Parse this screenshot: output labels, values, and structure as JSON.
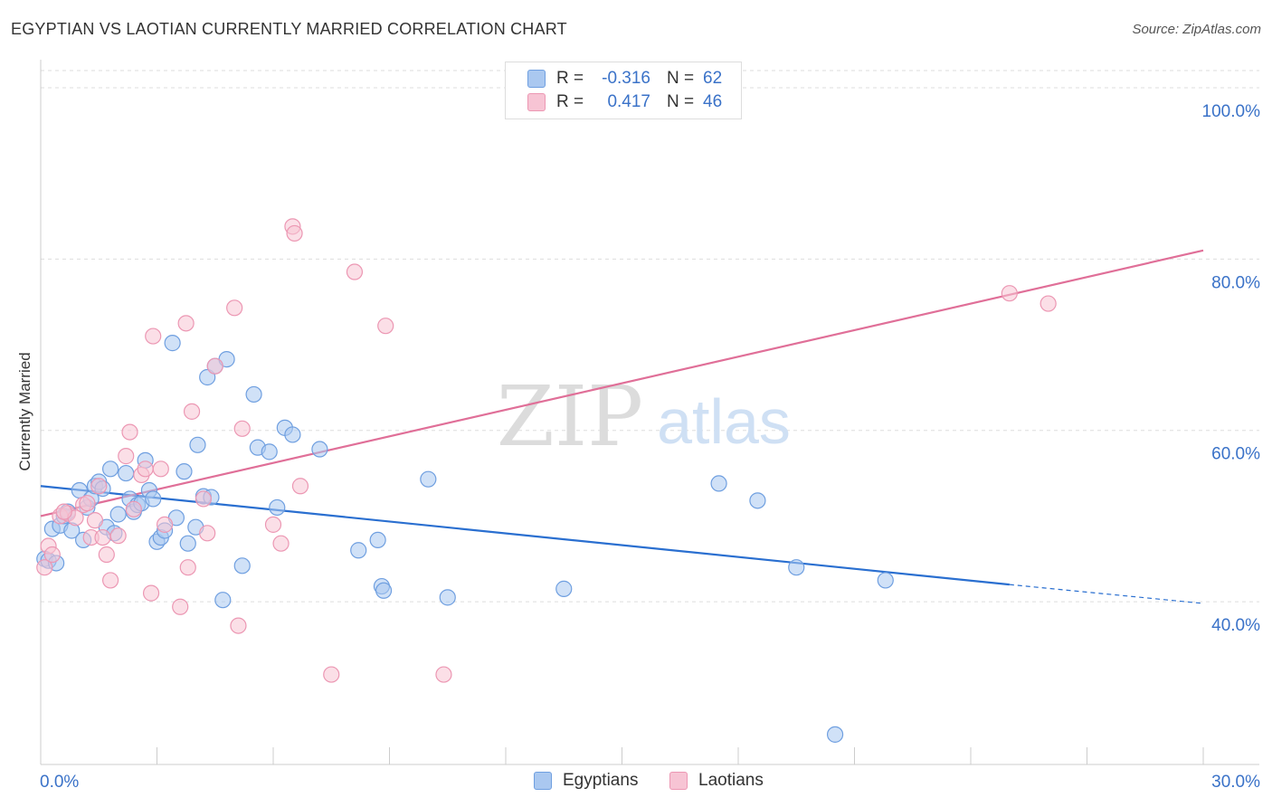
{
  "title": "EGYPTIAN VS LAOTIAN CURRENTLY MARRIED CORRELATION CHART",
  "source": "Source: ZipAtlas.com",
  "watermark": {
    "zip": "ZIP",
    "atlas": "atlas"
  },
  "colors": {
    "egyptians_fill": "#aac8f0",
    "egyptians_stroke": "#6f9fe0",
    "egyptians_line": "#2a6fd0",
    "laotians_fill": "#f7c4d4",
    "laotians_stroke": "#ec97b3",
    "laotians_line": "#e06f98",
    "axis_text": "#3a72c8",
    "grid": "#dddddd"
  },
  "legend_top": {
    "rows": [
      {
        "r_label": "R =",
        "r_value": "-0.316",
        "n_label": "N =",
        "n_value": "62"
      },
      {
        "r_label": "R =",
        "r_value": "0.417",
        "n_label": "N =",
        "n_value": "46"
      }
    ]
  },
  "legend_bottom": {
    "items": [
      "Egyptians",
      "Laotians"
    ]
  },
  "chart_data": {
    "type": "scatter",
    "title": "EGYPTIAN VS LAOTIAN CURRENTLY MARRIED CORRELATION CHART",
    "xlabel": "",
    "ylabel": "Currently Married",
    "xlim": [
      0,
      30
    ],
    "ylim": [
      21,
      102
    ],
    "x_tick_labels": [
      "0.0%",
      "30.0%"
    ],
    "y_ticks": [
      40,
      60,
      80,
      100
    ],
    "y_tick_labels": [
      "40.0%",
      "60.0%",
      "80.0%",
      "100.0%"
    ],
    "grid": true,
    "legend_position": "top-center",
    "series": [
      {
        "name": "Egyptians",
        "r": -0.316,
        "n": 62,
        "trend": {
          "x0": 0,
          "y0": 53.5,
          "x1": 25,
          "y1": 42.0,
          "dash_to": 30,
          "dash_y": 39.8
        },
        "points": [
          [
            0.1,
            45.0
          ],
          [
            0.2,
            44.8
          ],
          [
            0.3,
            48.5
          ],
          [
            0.4,
            44.5
          ],
          [
            0.5,
            48.9
          ],
          [
            0.6,
            50.0
          ],
          [
            0.7,
            50.5
          ],
          [
            0.8,
            48.3
          ],
          [
            1.0,
            53.0
          ],
          [
            1.1,
            47.2
          ],
          [
            1.2,
            51.0
          ],
          [
            1.3,
            52.0
          ],
          [
            1.4,
            53.5
          ],
          [
            1.5,
            54.0
          ],
          [
            1.6,
            53.2
          ],
          [
            1.7,
            48.7
          ],
          [
            1.8,
            55.5
          ],
          [
            1.9,
            48.0
          ],
          [
            2.0,
            50.2
          ],
          [
            2.2,
            55.0
          ],
          [
            2.3,
            52.0
          ],
          [
            2.4,
            50.5
          ],
          [
            2.5,
            51.3
          ],
          [
            2.6,
            51.5
          ],
          [
            2.7,
            56.5
          ],
          [
            2.8,
            53.0
          ],
          [
            2.9,
            52.0
          ],
          [
            3.0,
            47.0
          ],
          [
            3.1,
            47.5
          ],
          [
            3.2,
            48.3
          ],
          [
            3.4,
            70.2
          ],
          [
            3.5,
            49.8
          ],
          [
            3.7,
            55.2
          ],
          [
            3.8,
            46.8
          ],
          [
            4.0,
            48.7
          ],
          [
            4.05,
            58.3
          ],
          [
            4.2,
            52.3
          ],
          [
            4.3,
            66.2
          ],
          [
            4.4,
            52.2
          ],
          [
            4.5,
            67.5
          ],
          [
            4.7,
            40.2
          ],
          [
            4.8,
            68.3
          ],
          [
            5.2,
            44.2
          ],
          [
            5.5,
            64.2
          ],
          [
            5.6,
            58.0
          ],
          [
            5.9,
            57.5
          ],
          [
            6.1,
            51.0
          ],
          [
            6.3,
            60.3
          ],
          [
            6.5,
            59.5
          ],
          [
            7.2,
            57.8
          ],
          [
            8.2,
            46.0
          ],
          [
            8.7,
            47.2
          ],
          [
            8.8,
            41.8
          ],
          [
            8.85,
            41.3
          ],
          [
            10.0,
            54.3
          ],
          [
            10.5,
            40.5
          ],
          [
            13.5,
            41.5
          ],
          [
            17.5,
            53.8
          ],
          [
            18.5,
            51.8
          ],
          [
            19.5,
            44.0
          ],
          [
            20.5,
            24.5
          ],
          [
            21.8,
            42.5
          ]
        ]
      },
      {
        "name": "Laotians",
        "r": 0.417,
        "n": 46,
        "trend": {
          "x0": 0,
          "y0": 50.0,
          "x1": 30,
          "y1": 81.0
        },
        "points": [
          [
            0.1,
            44.0
          ],
          [
            0.2,
            46.5
          ],
          [
            0.3,
            45.5
          ],
          [
            0.5,
            50.0
          ],
          [
            0.7,
            50.3
          ],
          [
            0.9,
            49.8
          ],
          [
            1.1,
            51.3
          ],
          [
            1.2,
            51.5
          ],
          [
            1.3,
            47.5
          ],
          [
            1.4,
            49.5
          ],
          [
            1.5,
            53.5
          ],
          [
            1.6,
            47.5
          ],
          [
            1.7,
            45.5
          ],
          [
            1.8,
            42.5
          ],
          [
            2.0,
            47.7
          ],
          [
            2.3,
            59.8
          ],
          [
            2.4,
            50.8
          ],
          [
            2.6,
            54.8
          ],
          [
            2.7,
            55.5
          ],
          [
            2.85,
            41.0
          ],
          [
            2.9,
            71.0
          ],
          [
            3.1,
            55.5
          ],
          [
            3.2,
            49.0
          ],
          [
            3.6,
            39.4
          ],
          [
            3.75,
            72.5
          ],
          [
            3.8,
            44.0
          ],
          [
            3.9,
            62.2
          ],
          [
            4.2,
            52.0
          ],
          [
            4.3,
            48.0
          ],
          [
            4.5,
            67.5
          ],
          [
            5.0,
            74.3
          ],
          [
            5.1,
            37.2
          ],
          [
            5.2,
            60.2
          ],
          [
            6.0,
            49.0
          ],
          [
            6.2,
            46.8
          ],
          [
            6.7,
            53.5
          ],
          [
            6.5,
            83.8
          ],
          [
            6.55,
            83.0
          ],
          [
            7.5,
            31.5
          ],
          [
            8.1,
            78.5
          ],
          [
            8.9,
            72.2
          ],
          [
            10.4,
            31.5
          ],
          [
            25.0,
            76.0
          ],
          [
            26.0,
            74.8
          ],
          [
            2.2,
            57.0
          ],
          [
            0.6,
            50.5
          ]
        ]
      }
    ]
  }
}
